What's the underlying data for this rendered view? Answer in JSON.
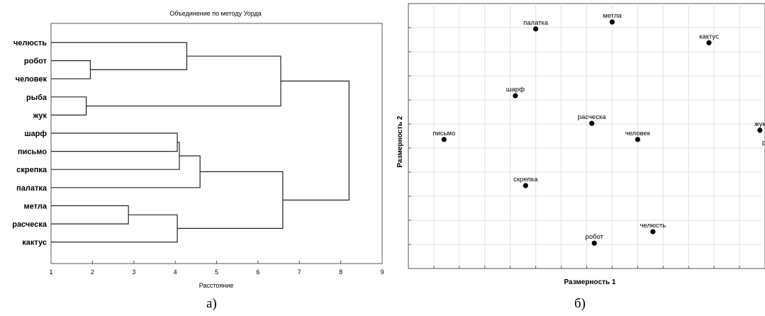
{
  "chart_data": [
    {
      "type": "dendrogram",
      "title": "Объединение по методу Уорда",
      "xlabel": "Расстояние",
      "xlim": [
        1,
        9
      ],
      "xticks": [
        "1",
        "2",
        "3",
        "4",
        "5",
        "6",
        "7",
        "8",
        "9"
      ],
      "leaves": [
        "челюсть",
        "робот",
        "человек",
        "рыба",
        "жук",
        "шарф",
        "письмо",
        "скрепка",
        "палатка",
        "метла",
        "расческа",
        "кактус"
      ],
      "merges": [
        {
          "left": "робот",
          "right": "человек",
          "height": 1.95
        },
        {
          "left": "рыба",
          "right": "жук",
          "height": 1.85
        },
        {
          "left": "челюсть",
          "right": "робот+человек",
          "height": 4.28
        },
        {
          "left": "челюсть+робот+человек",
          "right": "рыба+жук",
          "height": 6.55
        },
        {
          "left": "шарф",
          "right": "письмо",
          "height": 4.05
        },
        {
          "left": "шарф+письмо",
          "right": "скрепка",
          "height": 4.1
        },
        {
          "left": "шарф+письмо+скрепка",
          "right": "палатка",
          "height": 4.6
        },
        {
          "left": "метла",
          "right": "расческа",
          "height": 2.87
        },
        {
          "left": "метла+расческа",
          "right": "кактус",
          "height": 4.05
        },
        {
          "left": "шарф+письмо+скрепка+палатка",
          "right": "метла+расческа+кактус",
          "height": 6.6
        },
        {
          "left": "челюсть+робот+человек+рыба+жук",
          "right": "шарф+письмо+скрепка+палатка+метла+расческа+кактус",
          "height": 8.2
        }
      ],
      "caption": "а)"
    },
    {
      "type": "scatter",
      "xlabel": "Размерность 1",
      "ylabel": "Размерность 2",
      "xlim": [
        0,
        14
      ],
      "ylim": [
        0,
        11.5
      ],
      "grid": true,
      "points": [
        {
          "label": "палатка",
          "x": 5.0,
          "y": 10.4
        },
        {
          "label": "метла",
          "x": 8.0,
          "y": 10.7
        },
        {
          "label": "кактус",
          "x": 11.8,
          "y": 9.8
        },
        {
          "label": "шарф",
          "x": 4.2,
          "y": 7.5
        },
        {
          "label": "расческа",
          "x": 7.2,
          "y": 6.3
        },
        {
          "label": "жук",
          "x": 13.8,
          "y": 6.0
        },
        {
          "label": "письмо",
          "x": 1.4,
          "y": 5.6
        },
        {
          "label": "человек",
          "x": 9.0,
          "y": 5.6
        },
        {
          "label": "рыба",
          "x": 14.2,
          "y": 5.2
        },
        {
          "label": "скрепка",
          "x": 4.6,
          "y": 3.6
        },
        {
          "label": "челюсть",
          "x": 9.6,
          "y": 1.6
        },
        {
          "label": "робот",
          "x": 7.3,
          "y": 1.1
        }
      ],
      "caption": "б)"
    }
  ]
}
